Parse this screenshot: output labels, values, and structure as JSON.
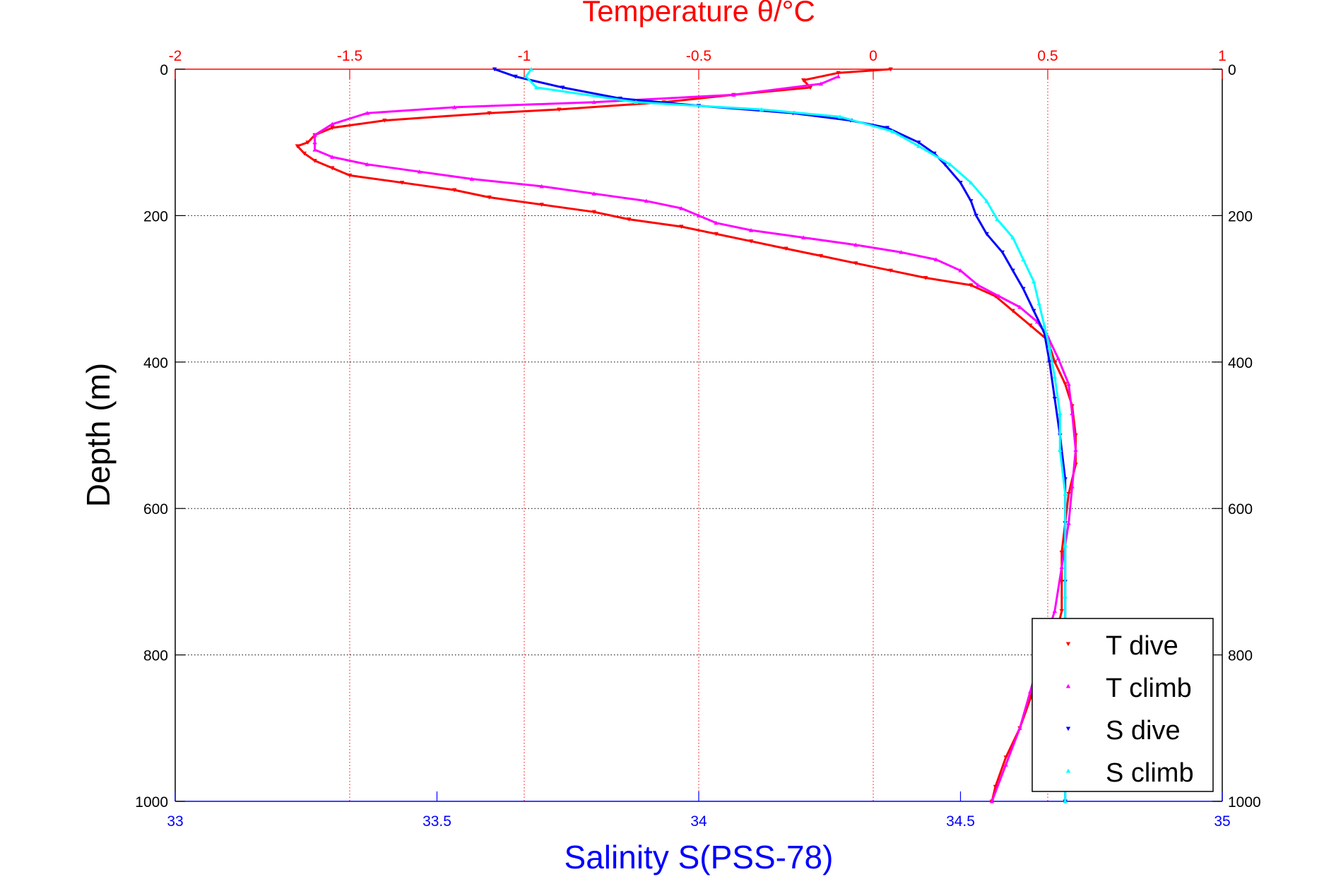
{
  "chart_data": {
    "type": "scatter",
    "title": "Temperature θ/°C",
    "ylabel": "Depth (m)",
    "xlabel": "Salinity S(PSS-78)",
    "y_axis": {
      "range": [
        0,
        1000
      ],
      "reversed": true,
      "ticks": [
        "0",
        "200",
        "400",
        "600",
        "800",
        "1000"
      ]
    },
    "x_axis_temperature": {
      "position": "top",
      "range": [
        -2,
        1
      ],
      "ticks": [
        "-2",
        "-1.5",
        "-1",
        "-0.5",
        "0",
        "0.5",
        "1"
      ],
      "color": "#ff0000"
    },
    "x_axis_salinity": {
      "position": "bottom",
      "range": [
        33,
        35
      ],
      "ticks": [
        "33",
        "33.5",
        "34",
        "34.5",
        "35"
      ],
      "color": "#0000ff"
    },
    "grid": true,
    "legend": {
      "placement": "bottom-right",
      "entries": [
        "T dive",
        "T climb",
        "S dive",
        "S climb"
      ]
    },
    "series": [
      {
        "name": "T dive",
        "axis": "temperature",
        "color": "#ff0000",
        "marker": "triangle-down",
        "points": [
          [
            0.05,
            0
          ],
          [
            -0.1,
            5
          ],
          [
            -0.2,
            15
          ],
          [
            -0.18,
            25
          ],
          [
            -0.4,
            35
          ],
          [
            -0.6,
            45
          ],
          [
            -0.9,
            55
          ],
          [
            -1.1,
            60
          ],
          [
            -1.4,
            70
          ],
          [
            -1.55,
            80
          ],
          [
            -1.6,
            90
          ],
          [
            -1.62,
            100
          ],
          [
            -1.65,
            105
          ],
          [
            -1.63,
            115
          ],
          [
            -1.6,
            125
          ],
          [
            -1.55,
            135
          ],
          [
            -1.5,
            145
          ],
          [
            -1.35,
            155
          ],
          [
            -1.2,
            165
          ],
          [
            -1.1,
            175
          ],
          [
            -0.95,
            185
          ],
          [
            -0.8,
            195
          ],
          [
            -0.7,
            205
          ],
          [
            -0.55,
            215
          ],
          [
            -0.45,
            225
          ],
          [
            -0.35,
            235
          ],
          [
            -0.25,
            245
          ],
          [
            -0.15,
            255
          ],
          [
            -0.05,
            265
          ],
          [
            0.05,
            275
          ],
          [
            0.15,
            285
          ],
          [
            0.28,
            295
          ],
          [
            0.35,
            310
          ],
          [
            0.4,
            330
          ],
          [
            0.45,
            350
          ],
          [
            0.5,
            370
          ],
          [
            0.52,
            400
          ],
          [
            0.55,
            430
          ],
          [
            0.57,
            460
          ],
          [
            0.58,
            500
          ],
          [
            0.58,
            540
          ],
          [
            0.56,
            580
          ],
          [
            0.55,
            620
          ],
          [
            0.54,
            660
          ],
          [
            0.54,
            700
          ],
          [
            0.54,
            740
          ],
          [
            0.52,
            780
          ],
          [
            0.47,
            820
          ],
          [
            0.45,
            860
          ],
          [
            0.42,
            900
          ],
          [
            0.38,
            940
          ],
          [
            0.35,
            980
          ],
          [
            0.34,
            1000
          ]
        ]
      },
      {
        "name": "T climb",
        "axis": "temperature",
        "color": "#ff00ff",
        "marker": "triangle-up",
        "points": [
          [
            -0.1,
            10
          ],
          [
            -0.15,
            20
          ],
          [
            -0.4,
            35
          ],
          [
            -0.8,
            45
          ],
          [
            -1.2,
            52
          ],
          [
            -1.45,
            60
          ],
          [
            -1.55,
            75
          ],
          [
            -1.6,
            90
          ],
          [
            -1.6,
            100
          ],
          [
            -1.6,
            110
          ],
          [
            -1.55,
            120
          ],
          [
            -1.45,
            130
          ],
          [
            -1.3,
            140
          ],
          [
            -1.15,
            150
          ],
          [
            -0.95,
            160
          ],
          [
            -0.8,
            170
          ],
          [
            -0.65,
            180
          ],
          [
            -0.55,
            190
          ],
          [
            -0.5,
            200
          ],
          [
            -0.45,
            210
          ],
          [
            -0.35,
            220
          ],
          [
            -0.2,
            230
          ],
          [
            -0.05,
            240
          ],
          [
            0.08,
            250
          ],
          [
            0.18,
            260
          ],
          [
            0.25,
            275
          ],
          [
            0.3,
            295
          ],
          [
            0.36,
            310
          ],
          [
            0.42,
            325
          ],
          [
            0.47,
            345
          ],
          [
            0.5,
            365
          ],
          [
            0.53,
            395
          ],
          [
            0.56,
            430
          ],
          [
            0.57,
            470
          ],
          [
            0.58,
            520
          ],
          [
            0.57,
            570
          ],
          [
            0.56,
            620
          ],
          [
            0.54,
            680
          ],
          [
            0.52,
            740
          ],
          [
            0.48,
            800
          ],
          [
            0.45,
            850
          ],
          [
            0.42,
            900
          ],
          [
            0.38,
            950
          ],
          [
            0.34,
            1000
          ]
        ]
      },
      {
        "name": "S dive",
        "axis": "salinity",
        "color": "#0000ff",
        "marker": "triangle-down",
        "points": [
          [
            33.61,
            0
          ],
          [
            33.65,
            10
          ],
          [
            33.74,
            25
          ],
          [
            33.85,
            40
          ],
          [
            34.0,
            50
          ],
          [
            34.18,
            60
          ],
          [
            34.29,
            70
          ],
          [
            34.36,
            80
          ],
          [
            34.42,
            100
          ],
          [
            34.45,
            115
          ],
          [
            34.47,
            130
          ],
          [
            34.5,
            155
          ],
          [
            34.52,
            180
          ],
          [
            34.53,
            200
          ],
          [
            34.55,
            225
          ],
          [
            34.58,
            250
          ],
          [
            34.6,
            275
          ],
          [
            34.62,
            300
          ],
          [
            34.64,
            330
          ],
          [
            34.66,
            360
          ],
          [
            34.67,
            400
          ],
          [
            34.68,
            450
          ],
          [
            34.69,
            500
          ],
          [
            34.7,
            560
          ],
          [
            34.7,
            620
          ],
          [
            34.7,
            700
          ],
          [
            34.7,
            780
          ],
          [
            34.7,
            850
          ],
          [
            34.7,
            930
          ],
          [
            34.7,
            1000
          ]
        ]
      },
      {
        "name": "S climb",
        "axis": "salinity",
        "color": "#00ffff",
        "marker": "triangle-up",
        "points": [
          [
            33.68,
            0
          ],
          [
            33.67,
            10
          ],
          [
            33.69,
            25
          ],
          [
            33.88,
            45
          ],
          [
            34.12,
            55
          ],
          [
            34.27,
            65
          ],
          [
            34.37,
            85
          ],
          [
            34.42,
            105
          ],
          [
            34.48,
            130
          ],
          [
            34.52,
            155
          ],
          [
            34.55,
            180
          ],
          [
            34.57,
            205
          ],
          [
            34.6,
            230
          ],
          [
            34.62,
            260
          ],
          [
            34.64,
            290
          ],
          [
            34.65,
            320
          ],
          [
            34.66,
            350
          ],
          [
            34.67,
            380
          ],
          [
            34.68,
            420
          ],
          [
            34.69,
            470
          ],
          [
            34.69,
            520
          ],
          [
            34.7,
            580
          ],
          [
            34.7,
            650
          ],
          [
            34.7,
            720
          ],
          [
            34.7,
            800
          ],
          [
            34.7,
            880
          ],
          [
            34.7,
            950
          ],
          [
            34.7,
            1000
          ]
        ]
      }
    ]
  }
}
